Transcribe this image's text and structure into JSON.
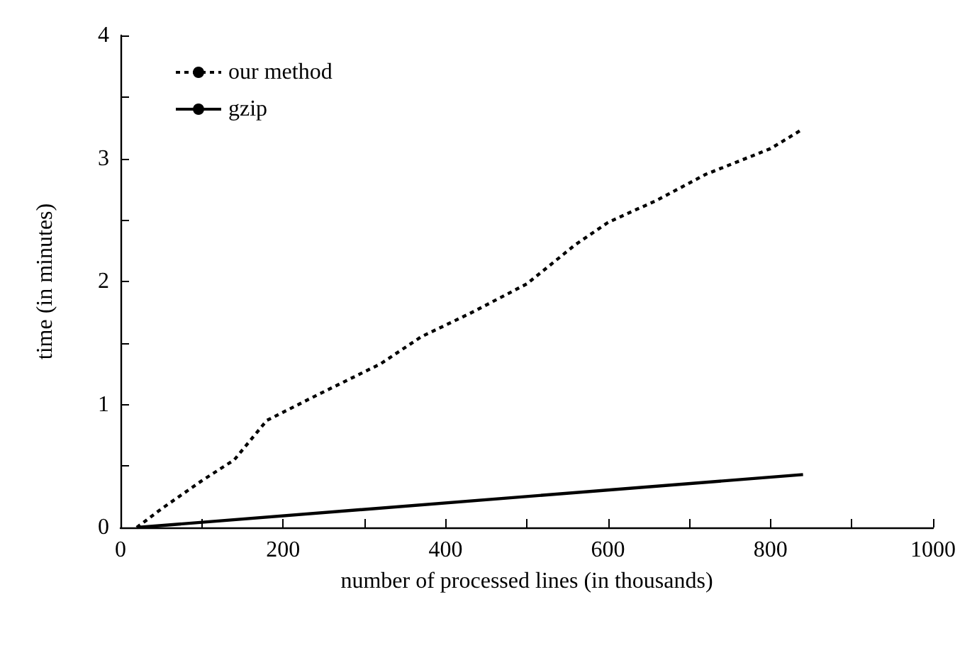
{
  "chart_data": {
    "type": "line",
    "xlabel": "number of processed lines (in thousands)",
    "ylabel": "time (in minutes)",
    "xlim": [
      0,
      1000
    ],
    "ylim": [
      0,
      4
    ],
    "xticks": [
      0,
      {
        "value": 100,
        "label": null
      },
      200,
      {
        "value": 300,
        "label": null
      },
      400,
      {
        "value": 500,
        "label": null
      },
      600,
      {
        "value": 700,
        "label": null
      },
      800,
      {
        "value": 900,
        "label": null
      },
      1000
    ],
    "yticks": [
      0,
      {
        "value": 0.5,
        "label": null
      },
      1,
      {
        "value": 1.5,
        "label": null
      },
      2,
      {
        "value": 2.5,
        "label": null
      },
      3,
      {
        "value": 3.5,
        "label": null
      },
      4
    ],
    "grid": false,
    "legend": "top left",
    "marker": "none",
    "series": [
      {
        "name": "our method",
        "color": "#000000",
        "line_style": "dotted",
        "x": [
          20,
          50,
          100,
          140,
          180,
          240,
          320,
          370,
          430,
          500,
          560,
          600,
          660,
          720,
          800,
          840
        ],
        "values": [
          0,
          0.15,
          0.38,
          0.55,
          0.87,
          1.07,
          1.33,
          1.55,
          1.74,
          1.98,
          2.3,
          2.48,
          2.66,
          2.87,
          3.08,
          3.24
        ]
      },
      {
        "name": "gzip",
        "color": "#000000",
        "line_style": "solid",
        "x": [
          20,
          840
        ],
        "values": [
          0,
          0.43
        ]
      }
    ]
  }
}
